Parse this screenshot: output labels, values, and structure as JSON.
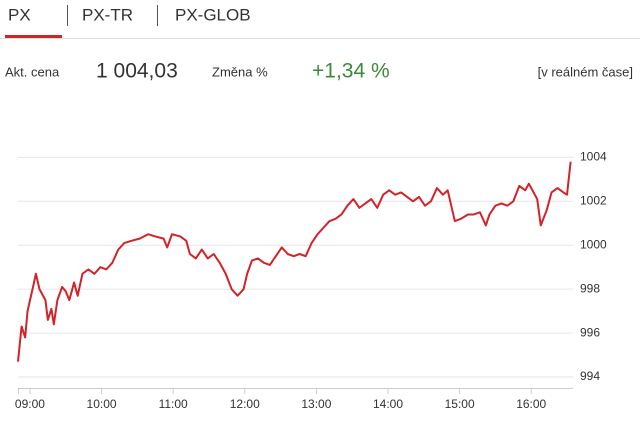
{
  "tabs": [
    "PX",
    "PX-TR",
    "PX-GLOB"
  ],
  "quote": {
    "price_label": "Akt. cena",
    "price": "1 004,03",
    "change_label": "Změna %",
    "change": "+1,34 %",
    "realtime": "[v reálném čase]"
  },
  "chart_data": {
    "type": "line",
    "x": [
      530,
      533,
      536,
      538,
      543,
      545,
      548,
      553,
      555,
      558,
      560,
      563,
      567,
      570,
      573,
      577,
      580,
      584,
      589,
      594,
      599,
      604,
      609,
      614,
      619,
      625,
      632,
      639,
      645,
      652,
      655,
      659,
      666,
      671,
      674,
      679,
      684,
      689,
      694,
      699,
      704,
      709,
      714,
      719,
      722,
      726,
      731,
      736,
      741,
      746,
      751,
      756,
      761,
      766,
      771,
      776,
      781,
      786,
      791,
      796,
      801,
      806,
      811,
      816,
      821,
      826,
      831,
      836,
      841,
      846,
      851,
      856,
      861,
      866,
      871,
      876,
      881,
      886,
      890,
      893,
      896,
      901,
      907,
      912,
      917,
      922,
      925,
      930,
      935,
      940,
      945,
      950,
      955,
      958,
      962,
      965,
      968,
      973,
      977,
      982,
      987,
      990,
      993
    ],
    "series": [
      {
        "name": "PX",
        "color": "#d2232a",
        "values": [
          994.7,
          996.3,
          995.8,
          997.0,
          998.2,
          998.7,
          998.0,
          997.5,
          996.6,
          997.1,
          996.4,
          997.5,
          998.1,
          997.9,
          997.5,
          998.3,
          997.7,
          998.7,
          998.9,
          998.7,
          999.0,
          998.9,
          999.2,
          999.8,
          1000.1,
          1000.2,
          1000.3,
          1000.5,
          1000.4,
          1000.3,
          999.9,
          1000.5,
          1000.4,
          1000.2,
          999.6,
          999.4,
          999.8,
          999.4,
          999.6,
          999.2,
          998.7,
          998.0,
          997.7,
          998.0,
          998.7,
          999.3,
          999.4,
          999.2,
          999.1,
          999.5,
          999.9,
          999.6,
          999.5,
          999.6,
          999.5,
          1000.1,
          1000.5,
          1000.8,
          1001.1,
          1001.2,
          1001.4,
          1001.8,
          1002.1,
          1001.7,
          1001.9,
          1002.1,
          1001.7,
          1002.3,
          1002.5,
          1002.3,
          1002.4,
          1002.2,
          1002.0,
          1002.2,
          1001.8,
          1002.0,
          1002.6,
          1002.3,
          1002.5,
          1001.8,
          1001.1,
          1001.2,
          1001.4,
          1001.4,
          1001.5,
          1000.9,
          1001.4,
          1001.8,
          1001.9,
          1001.8,
          1002.0,
          1002.7,
          1002.5,
          1002.8,
          1002.4,
          1002.1,
          1000.9,
          1001.6,
          1002.4,
          1002.6,
          1002.4,
          1002.3,
          1003.8
        ]
      }
    ],
    "xlim": [
      530,
      995
    ],
    "xticks": [
      {
        "value": 540,
        "label": "09:00"
      },
      {
        "value": 600,
        "label": "10:00"
      },
      {
        "value": 660,
        "label": "11:00"
      },
      {
        "value": 720,
        "label": "12:00"
      },
      {
        "value": 780,
        "label": "13:00"
      },
      {
        "value": 840,
        "label": "14:00"
      },
      {
        "value": 900,
        "label": "15:00"
      },
      {
        "value": 960,
        "label": "16:00"
      }
    ],
    "ylim": [
      993.5,
      1005.7
    ],
    "yticks": [
      994,
      996,
      998,
      1000,
      1002,
      1004
    ],
    "grid": true
  }
}
